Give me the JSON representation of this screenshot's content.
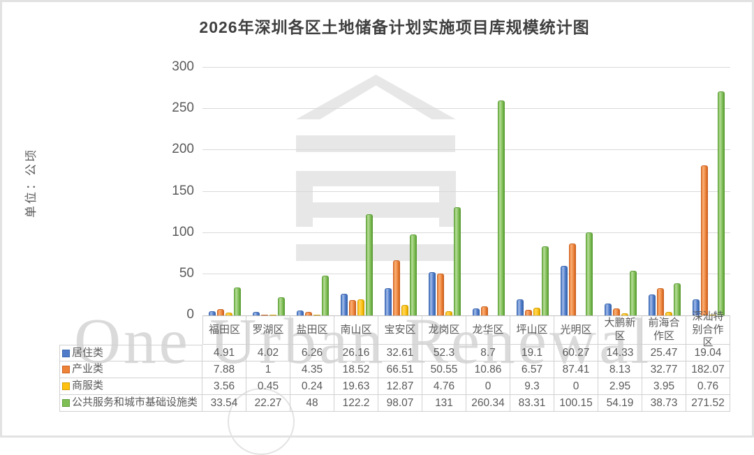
{
  "title": "2026年深圳各区土地储备计划实施项目库规模统计图",
  "y_axis": {
    "unit_label": "单位：公顷",
    "ticks": [
      0,
      50,
      100,
      150,
      200,
      250,
      300
    ]
  },
  "watermark": {
    "text": "One Urban Renewal",
    "logo": "building-roof-logo"
  },
  "colors": {
    "grid": "#D9D9D9",
    "axis_line": "#BEBEBE",
    "table_border": "#D0D0D0",
    "text": "#595959",
    "title_text": "#3F3F3F",
    "watermark_gray": "#E7E7E7"
  },
  "chart_data": {
    "type": "bar",
    "title": "2026年深圳各区土地储备计划实施项目库规模统计图",
    "xlabel": "",
    "ylabel": "单位：公顷",
    "ylim": [
      0,
      300
    ],
    "ytick_step": 50,
    "grid": true,
    "legend_position": "data-table-left",
    "categories": [
      "福田区",
      "罗湖区",
      "盐田区",
      "南山区",
      "宝安区",
      "龙岗区",
      "龙华区",
      "坪山区",
      "光明区",
      "大鹏新区",
      "前海合作区",
      "深汕特别合作区"
    ],
    "series": [
      {
        "name": "居住类",
        "color": "#4F7BC9",
        "color_light": "#A3BCE8",
        "color_border": "#3A66AE",
        "values": [
          4.91,
          4.02,
          6.26,
          26.16,
          32.61,
          52.3,
          8.7,
          19.1,
          60.27,
          14.33,
          25.47,
          19.04
        ]
      },
      {
        "name": "产业类",
        "color": "#EE8338",
        "color_light": "#F7B079",
        "color_border": "#CB6120",
        "values": [
          7.88,
          1,
          4.35,
          18.52,
          66.51,
          50.55,
          10.86,
          6.57,
          87.41,
          8.13,
          32.77,
          182.07
        ]
      },
      {
        "name": "商服类",
        "color": "#FFC110",
        "color_light": "#FFD75E",
        "color_border": "#D29F00",
        "values": [
          3.56,
          0.45,
          0.24,
          19.63,
          12.87,
          4.76,
          0,
          9.3,
          0,
          2.95,
          3.95,
          0.76
        ]
      },
      {
        "name": "公共服务和城市基础设施类",
        "color": "#7FBE55",
        "color_light": "#B4DA97",
        "color_border": "#5D9E38",
        "values": [
          33.54,
          22.27,
          48,
          122.2,
          98.07,
          131,
          260.34,
          83.31,
          100.15,
          54.19,
          38.73,
          271.52
        ]
      }
    ]
  }
}
